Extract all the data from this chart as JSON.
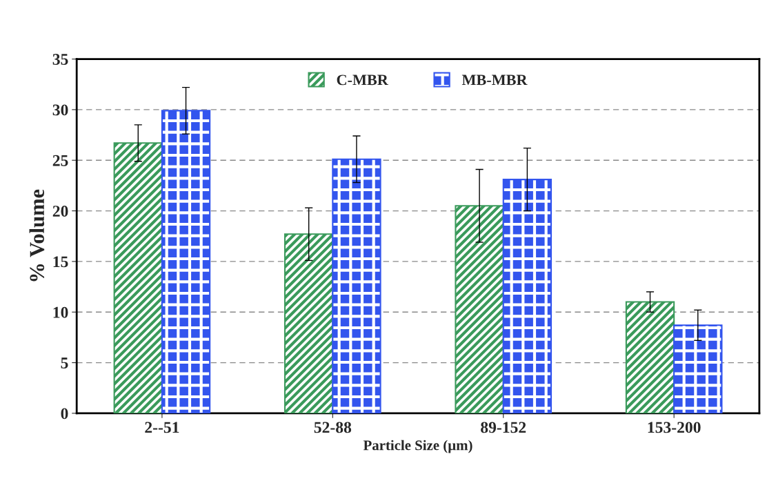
{
  "chart_data": {
    "type": "bar",
    "xlabel": "Particle Size (µm)",
    "ylabel": "% Volume",
    "categories": [
      "2--51",
      "52-88",
      "89-152",
      "153-200"
    ],
    "series": [
      {
        "name": "C-MBR",
        "color": "#3a9a5b",
        "values": [
          26.7,
          17.7,
          20.5,
          11.0
        ],
        "errors": [
          1.8,
          2.6,
          3.6,
          1.0
        ]
      },
      {
        "name": "MB-MBR",
        "color": "#3355ee",
        "values": [
          29.9,
          25.1,
          23.1,
          8.7
        ],
        "errors": [
          2.3,
          2.3,
          3.1,
          1.5
        ]
      }
    ],
    "ylim": [
      0,
      35
    ],
    "yticks": [
      0,
      5,
      10,
      15,
      20,
      25,
      30,
      35
    ],
    "grid": "y",
    "legend": "top"
  }
}
